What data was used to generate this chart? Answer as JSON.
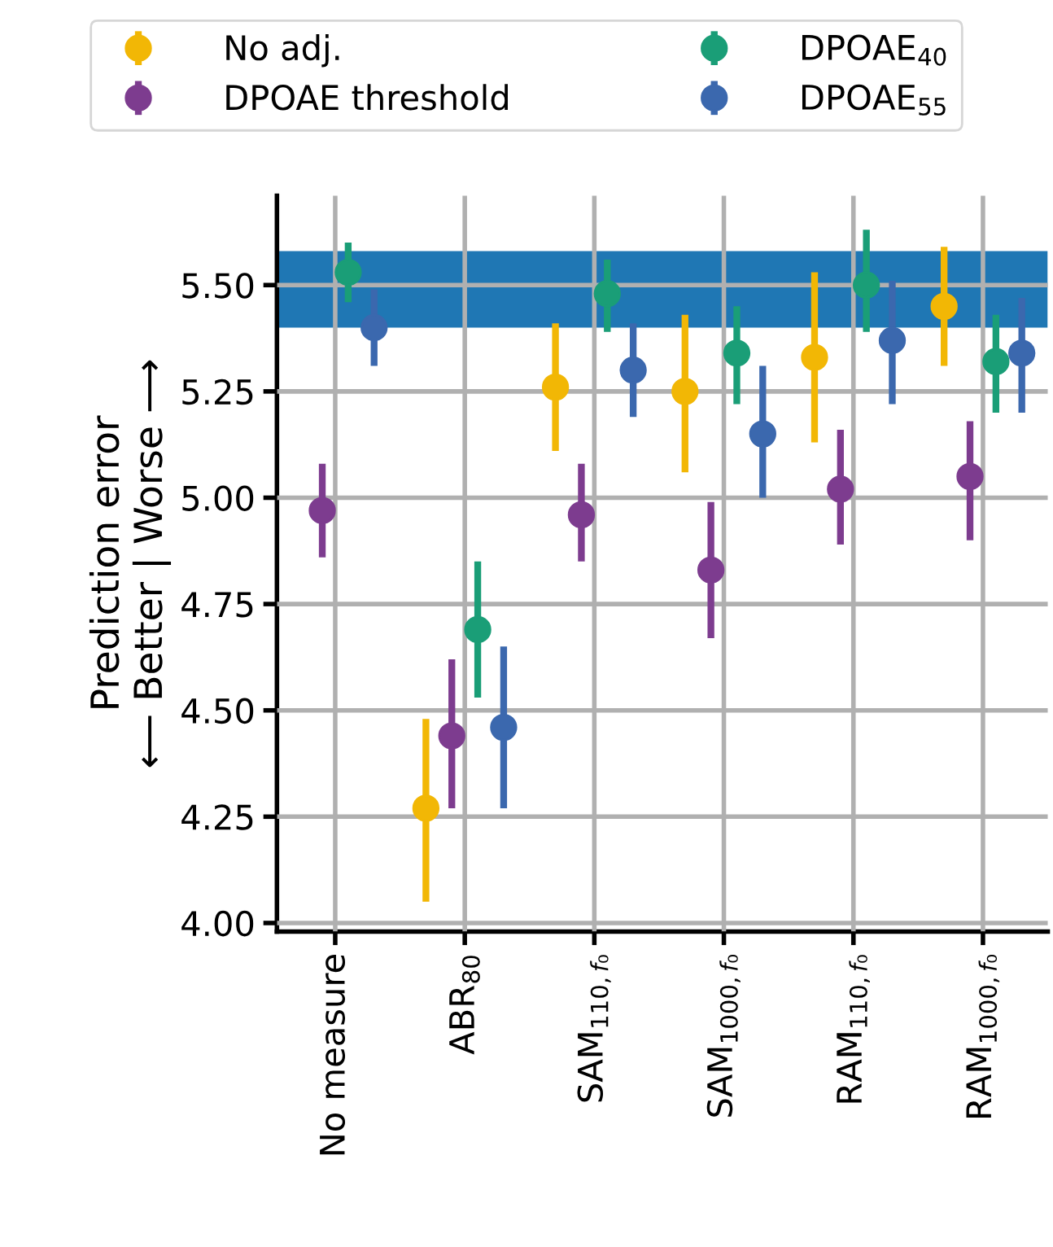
{
  "chart_data": {
    "type": "scatter",
    "ylabel": "Prediction error\n⟵ Better | Worse ⟶",
    "categories": [
      "No measure",
      "ABR$_{80}$",
      "SAM$_{110,f₀}$",
      "SAM$_{1000,f₀}$",
      "RAM$_{110,f₀}$",
      "RAM$_{1000,f₀}$"
    ],
    "series": [
      {
        "name": "No adj.",
        "color": "#f2b705",
        "values": [
          null,
          4.27,
          5.26,
          5.25,
          5.33,
          5.45
        ],
        "errors": [
          null,
          [
            4.05,
            4.48
          ],
          [
            5.11,
            5.41
          ],
          [
            5.06,
            5.43
          ],
          [
            5.13,
            5.53
          ],
          [
            5.31,
            5.59
          ]
        ]
      },
      {
        "name": "DPOAE threshold",
        "color": "#7d3c8f",
        "values": [
          4.97,
          4.44,
          4.96,
          4.83,
          5.02,
          5.05
        ],
        "errors": [
          [
            4.86,
            5.08
          ],
          [
            4.27,
            4.62
          ],
          [
            4.85,
            5.08
          ],
          [
            4.67,
            4.99
          ],
          [
            4.89,
            5.16
          ],
          [
            4.9,
            5.18
          ]
        ]
      },
      {
        "name": "DPOAE$_{40}$",
        "color": "#1a9e77",
        "values": [
          5.53,
          4.69,
          5.48,
          5.34,
          5.5,
          5.32
        ],
        "errors": [
          [
            5.46,
            5.6
          ],
          [
            4.53,
            4.85
          ],
          [
            5.39,
            5.56
          ],
          [
            5.22,
            5.45
          ],
          [
            5.39,
            5.63
          ],
          [
            5.2,
            5.43
          ]
        ]
      },
      {
        "name": "DPOAE$_{55}$",
        "color": "#3b68ae",
        "values": [
          5.4,
          4.46,
          5.3,
          5.15,
          5.37,
          5.34
        ],
        "errors": [
          [
            5.31,
            5.49
          ],
          [
            4.27,
            4.65
          ],
          [
            5.19,
            5.41
          ],
          [
            5.0,
            5.31
          ],
          [
            5.22,
            5.51
          ],
          [
            5.2,
            5.47
          ]
        ]
      }
    ],
    "bands": [
      {
        "axis": "y",
        "from": 5.4,
        "to": 5.58,
        "color": "#1f77b4"
      }
    ],
    "ylim": [
      3.98,
      5.71
    ],
    "yticks": [
      {
        "value": 4.0,
        "label": "4.00"
      },
      {
        "value": 4.25,
        "label": "4.25"
      },
      {
        "value": 4.5,
        "label": "4.50"
      },
      {
        "value": 4.75,
        "label": "4.75"
      },
      {
        "value": 5.0,
        "label": "5.00"
      },
      {
        "value": 5.25,
        "label": "5.25"
      },
      {
        "value": 5.5,
        "label": "5.50"
      }
    ],
    "grid": true,
    "legend": "top",
    "marker": "circle"
  }
}
